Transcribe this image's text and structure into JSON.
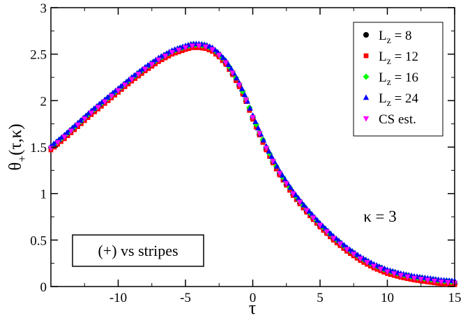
{
  "chart_data": {
    "type": "scatter",
    "title": "",
    "xlabel": "τ",
    "ylabel": {
      "main": "θ",
      "sub": "+",
      "rest": "(τ,κ)"
    },
    "xlim": [
      -15,
      15
    ],
    "ylim": [
      0,
      3
    ],
    "xticks": [
      -10,
      -5,
      0,
      5,
      10,
      15
    ],
    "xtick_labels": [
      "-10",
      "-5",
      "0",
      "5",
      "10",
      "15"
    ],
    "yticks": [
      0,
      0.5,
      1,
      1.5,
      2,
      2.5,
      3
    ],
    "ytick_labels": [
      "0",
      "0.5",
      "1",
      "1.5",
      "2",
      "2.5",
      "3"
    ],
    "grid": false,
    "legend_position": "top-right",
    "annotations": {
      "kappa": "κ = 3",
      "boxed_label": "(+) vs stripes"
    },
    "series": [
      {
        "name": "L_z = 8",
        "legend": {
          "main": "L",
          "sub": "z",
          "rest": " = 8"
        },
        "marker": "circle",
        "color": "#000000",
        "x_range": [
          -8.5,
          15
        ],
        "step": 0.5,
        "y_shift": -0.025
      },
      {
        "name": "L_z = 12",
        "legend": {
          "main": "L",
          "sub": "z",
          "rest": " = 12"
        },
        "marker": "square",
        "color": "#ff0000",
        "x_range": [
          -15,
          15
        ],
        "step": 0.25,
        "y_shift": -0.03
      },
      {
        "name": "L_z = 16",
        "legend": {
          "main": "L",
          "sub": "z",
          "rest": " = 16"
        },
        "marker": "diamond",
        "color": "#00ff00",
        "x_range": [
          -15,
          15
        ],
        "step": 0.25,
        "y_shift": 0.0
      },
      {
        "name": "L_z = 24",
        "legend": {
          "main": "L",
          "sub": "z",
          "rest": " = 24"
        },
        "marker": "triangle-up",
        "color": "#0000ff",
        "x_range": [
          -15,
          15
        ],
        "step": 0.2,
        "y_shift": 0.01
      },
      {
        "name": "CS est.",
        "legend": {
          "main": "CS est.",
          "sub": "",
          "rest": ""
        },
        "marker": "triangle-down",
        "color": "#ff00ff",
        "x_range": [
          -15,
          15
        ],
        "step": 0.5,
        "y_shift": -0.01
      }
    ],
    "curve": {
      "x": [
        -15,
        -14,
        -13,
        -12,
        -11,
        -10,
        -9,
        -8,
        -7,
        -6,
        -5,
        -4.5,
        -4,
        -3.5,
        -3,
        -2.5,
        -2,
        -1.5,
        -1,
        -0.5,
        0,
        0.5,
        1,
        1.5,
        2,
        3,
        4,
        5,
        6,
        7,
        8,
        9,
        10,
        11,
        12,
        13,
        14,
        15
      ],
      "y": [
        1.5,
        1.62,
        1.75,
        1.88,
        2.0,
        2.12,
        2.24,
        2.35,
        2.45,
        2.53,
        2.58,
        2.6,
        2.6,
        2.59,
        2.56,
        2.5,
        2.42,
        2.31,
        2.18,
        2.02,
        1.83,
        1.66,
        1.5,
        1.36,
        1.23,
        1.01,
        0.83,
        0.67,
        0.53,
        0.41,
        0.31,
        0.23,
        0.17,
        0.13,
        0.1,
        0.08,
        0.06,
        0.05
      ]
    }
  }
}
